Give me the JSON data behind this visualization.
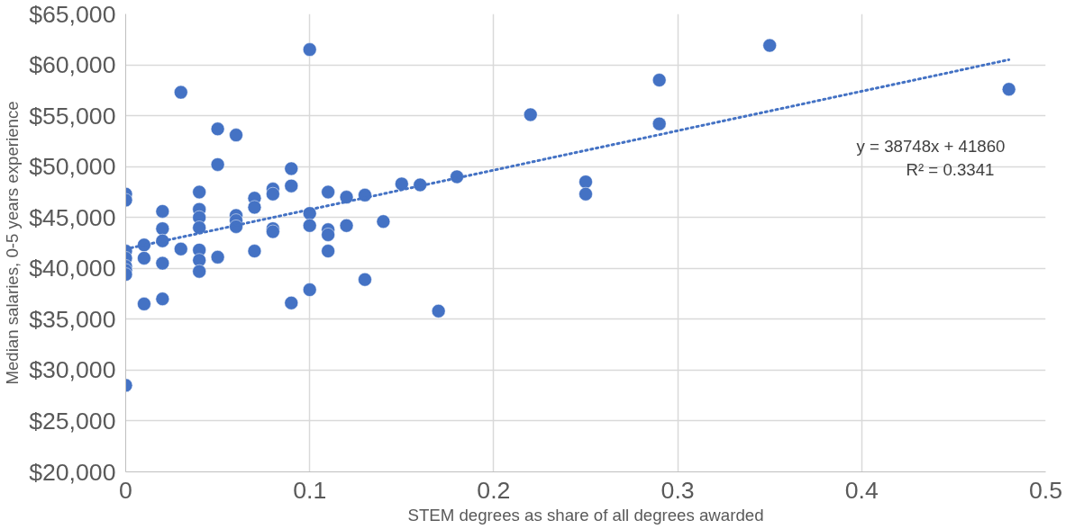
{
  "chart_data": {
    "type": "scatter",
    "xlabel": "STEM degrees as share of all degrees awarded",
    "ylabel": "Median salaries, 0-5 years experience",
    "xlim": [
      0,
      0.5
    ],
    "ylim": [
      20000,
      65000
    ],
    "xticks": [
      0,
      0.1,
      0.2,
      0.3,
      0.4,
      0.5
    ],
    "yticks": [
      {
        "value": 20000,
        "label": "$20,000"
      },
      {
        "value": 25000,
        "label": "$25,000"
      },
      {
        "value": 30000,
        "label": "$30,000"
      },
      {
        "value": 35000,
        "label": "$35,000"
      },
      {
        "value": 40000,
        "label": "$40,000"
      },
      {
        "value": 45000,
        "label": "$45,000"
      },
      {
        "value": 50000,
        "label": "$50,000"
      },
      {
        "value": 55000,
        "label": "$55,000"
      },
      {
        "value": 60000,
        "label": "$60,000"
      },
      {
        "value": 65000,
        "label": "$65,000"
      }
    ],
    "grid": true,
    "marker": "circle",
    "annotations": [
      "y = 38748x + 41860",
      "R² = 0.3341"
    ],
    "series": [
      {
        "color": "#4472c4",
        "x": [
          0,
          0,
          0,
          0,
          0,
          0,
          0,
          0,
          0.01,
          0.01,
          0.01,
          0.02,
          0.02,
          0.02,
          0.02,
          0.02,
          0.03,
          0.03,
          0.04,
          0.04,
          0.04,
          0.04,
          0.04,
          0.04,
          0.04,
          0.05,
          0.05,
          0.05,
          0.06,
          0.06,
          0.06,
          0.06,
          0.07,
          0.07,
          0.07,
          0.08,
          0.08,
          0.08,
          0.08,
          0.09,
          0.09,
          0.09,
          0.1,
          0.1,
          0.1,
          0.1,
          0.11,
          0.11,
          0.11,
          0.11,
          0.12,
          0.12,
          0.13,
          0.13,
          0.14,
          0.15,
          0.16,
          0.17,
          0.18,
          0.22,
          0.25,
          0.25,
          0.29,
          0.29,
          0.35,
          0.48
        ],
        "values": [
          47300,
          46700,
          41700,
          41000,
          40200,
          39800,
          39400,
          28500,
          42300,
          41000,
          36500,
          45600,
          43900,
          42700,
          40500,
          37000,
          57300,
          41900,
          47500,
          45800,
          45000,
          44000,
          41800,
          40800,
          39700,
          53700,
          50200,
          41100,
          53100,
          45200,
          44700,
          44100,
          46900,
          46000,
          41700,
          47800,
          47300,
          43900,
          43600,
          49800,
          48100,
          36600,
          61500,
          45400,
          44200,
          37900,
          47500,
          43800,
          43300,
          41700,
          47000,
          44200,
          47200,
          38900,
          44600,
          48300,
          48200,
          35800,
          49000,
          55100,
          48500,
          47300,
          58500,
          54200,
          61900,
          57600
        ]
      },
      {
        "type": "line",
        "color": "#4472c4",
        "line_style": "dotted",
        "marker": "none",
        "x": [
          0,
          0.48
        ],
        "values": [
          41900,
          60500
        ]
      }
    ]
  }
}
